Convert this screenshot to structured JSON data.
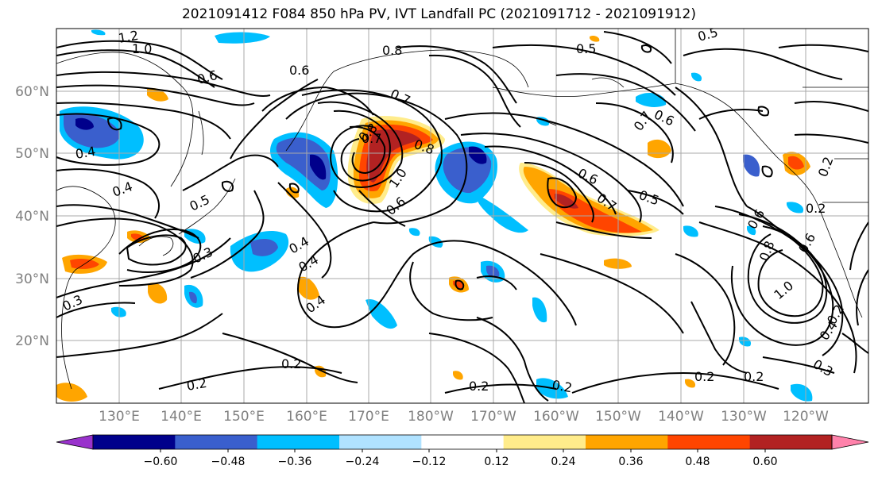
{
  "title": "2021091412 F084 850 hPa PV, IVT Landfall PC (2021091712 - 2021091912)",
  "lat_labels": [
    "60°N",
    "50°N",
    "40°N",
    "30°N",
    "20°N"
  ],
  "lon_labels": [
    "130°E",
    "140°E",
    "150°E",
    "160°E",
    "170°E",
    "180°W",
    "170°W",
    "160°W",
    "150°W",
    "140°W",
    "130°W",
    "120°W"
  ],
  "colorbar": {
    "ticks": [
      "−0.60",
      "−0.48",
      "−0.36",
      "−0.24",
      "−0.12",
      "0.12",
      "0.24",
      "0.36",
      "0.48",
      "0.60"
    ],
    "colors": [
      "#9932cc",
      "#00008b",
      "#3a5fcd",
      "#00bfff",
      "#b0e2ff",
      "#ffffff",
      "#ffec8b",
      "#ffa500",
      "#ff4500",
      "#b22222",
      "#ff82ab"
    ]
  },
  "contour_labels": [
    "1.2",
    "1.0",
    "0.8",
    "0.6",
    "0.5",
    "0.7",
    "0.6",
    "0.4",
    "0.4",
    "0.5",
    "0.4",
    "0.3",
    "0.3",
    "0.8",
    "1.0",
    "0.6",
    "0.8",
    "0.7",
    "0.6",
    "0.5",
    "0.7",
    "0.6",
    "0.4",
    "0.4",
    "0.2",
    "0.2",
    "0.2",
    "0.2",
    "0.2",
    "0.2",
    "0.6",
    "0.8",
    "1.0",
    "0.4",
    "0.3",
    "0.2",
    "0.2",
    "0.5",
    "0.2",
    "0.7",
    "0.6"
  ]
}
